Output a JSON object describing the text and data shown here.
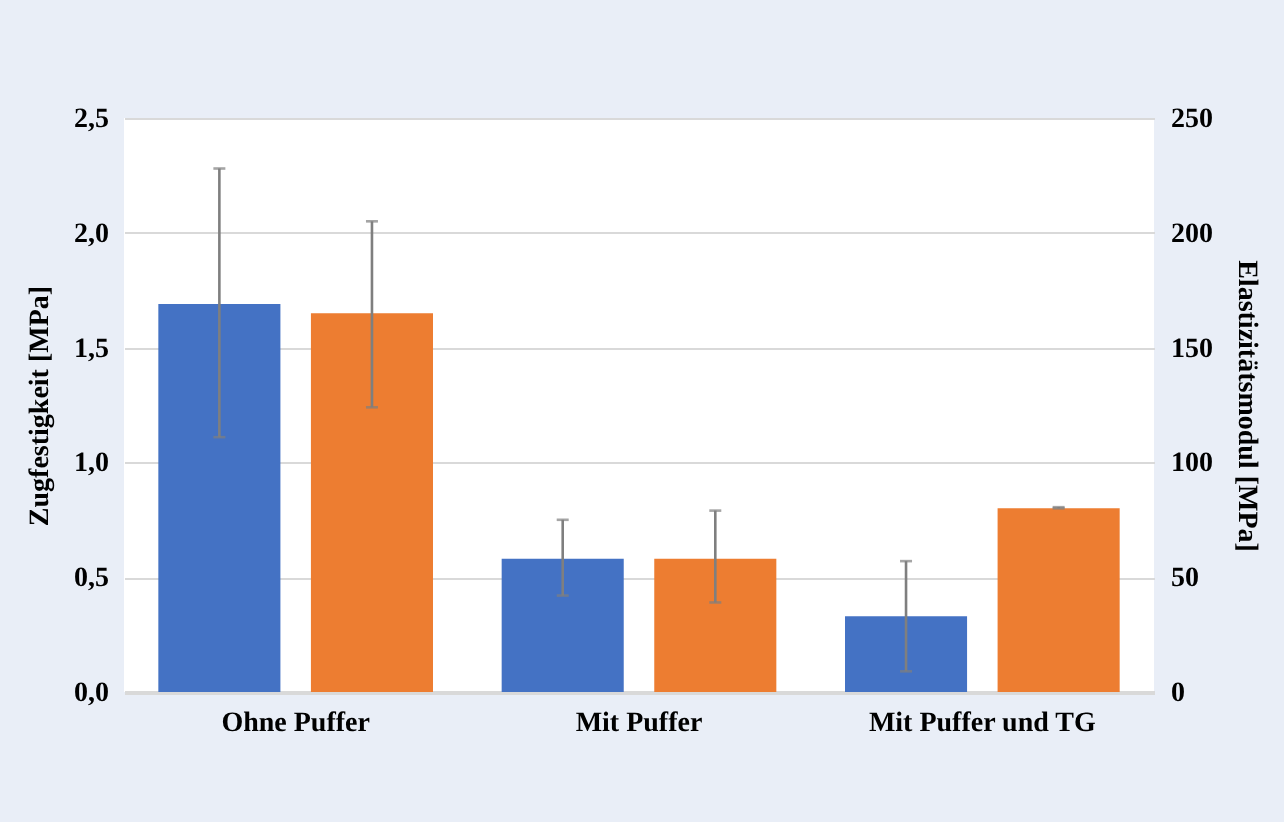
{
  "chart_data": {
    "type": "bar",
    "ylabel": "Zugfestigkeit [MPa]",
    "y2label": "Elastizitätsmodul [MPa]",
    "categories": [
      "Ohne Puffer",
      "Mit Puffer",
      "Mit Puffer und TG"
    ],
    "series": [
      {
        "color": "#4472c4",
        "axis": "y",
        "values": [
          1.69,
          0.58,
          0.33
        ],
        "errors": [
          [
            1.11,
            2.28
          ],
          [
            0.42,
            0.75
          ],
          [
            0.09,
            0.57
          ]
        ]
      },
      {
        "color": "#ed7d31",
        "axis": "y2",
        "values": [
          165,
          58,
          80
        ],
        "errors": [
          [
            124,
            205
          ],
          [
            39,
            79
          ],
          [
            80,
            80.5
          ]
        ]
      }
    ],
    "ylim": [
      0,
      2.5
    ],
    "yticks": [
      {
        "value": 0,
        "label": "0,0"
      },
      {
        "value": 0.5,
        "label": "0,5"
      },
      {
        "value": 1,
        "label": "1,0"
      },
      {
        "value": 1.5,
        "label": "1,5"
      },
      {
        "value": 2,
        "label": "2,0"
      },
      {
        "value": 2.5,
        "label": "2,5"
      }
    ],
    "y2lim": [
      0,
      250
    ],
    "y2ticks": [
      0,
      50,
      100,
      150,
      200,
      250
    ],
    "grid": "y"
  }
}
